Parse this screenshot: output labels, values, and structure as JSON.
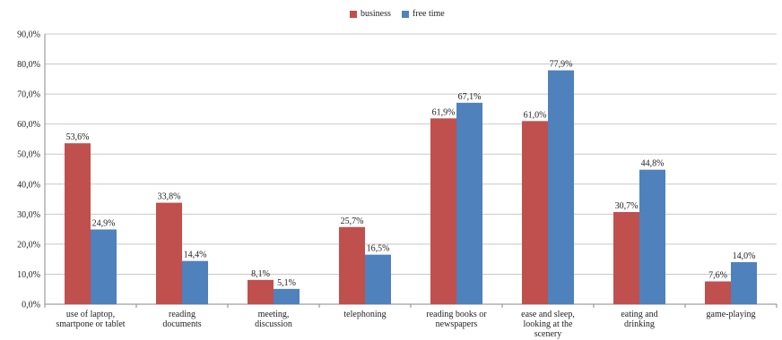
{
  "chart_data": {
    "type": "bar",
    "title": "",
    "xlabel": "",
    "ylabel": "",
    "ylim": [
      0,
      90
    ],
    "ytick_labels": [
      "0,0%",
      "10,0%",
      "20,0%",
      "30,0%",
      "40,0%",
      "50,0%",
      "60,0%",
      "70,0%",
      "80,0%",
      "90,0%"
    ],
    "grid": true,
    "legend_position": "top-center",
    "categories": [
      [
        "use of laptop,",
        "smartpone or tablet"
      ],
      [
        "reading",
        "documents"
      ],
      [
        "meeting,",
        "discussion"
      ],
      [
        "telephoning"
      ],
      [
        "reading books or",
        "newspapers"
      ],
      [
        "ease and sleep,",
        "looking at the",
        "scenery"
      ],
      [
        "eating and",
        "drinking"
      ],
      [
        "game-playing"
      ]
    ],
    "series": [
      {
        "name": "business",
        "color": "#c0504d",
        "values": [
          53.6,
          33.8,
          8.1,
          25.7,
          61.9,
          61.0,
          30.7,
          7.6
        ],
        "labels": [
          "53,6%",
          "33,8%",
          "8,1%",
          "25,7%",
          "61,9%",
          "61,0%",
          "30,7%",
          "7,6%"
        ]
      },
      {
        "name": "free time",
        "color": "#4f81bd",
        "values": [
          24.9,
          14.4,
          5.1,
          16.5,
          67.1,
          77.9,
          44.8,
          14.0
        ],
        "labels": [
          "24,9%",
          "14,4%",
          "5,1%",
          "16,5%",
          "67,1%",
          "77,9%",
          "44,8%",
          "14,0%"
        ]
      }
    ]
  }
}
